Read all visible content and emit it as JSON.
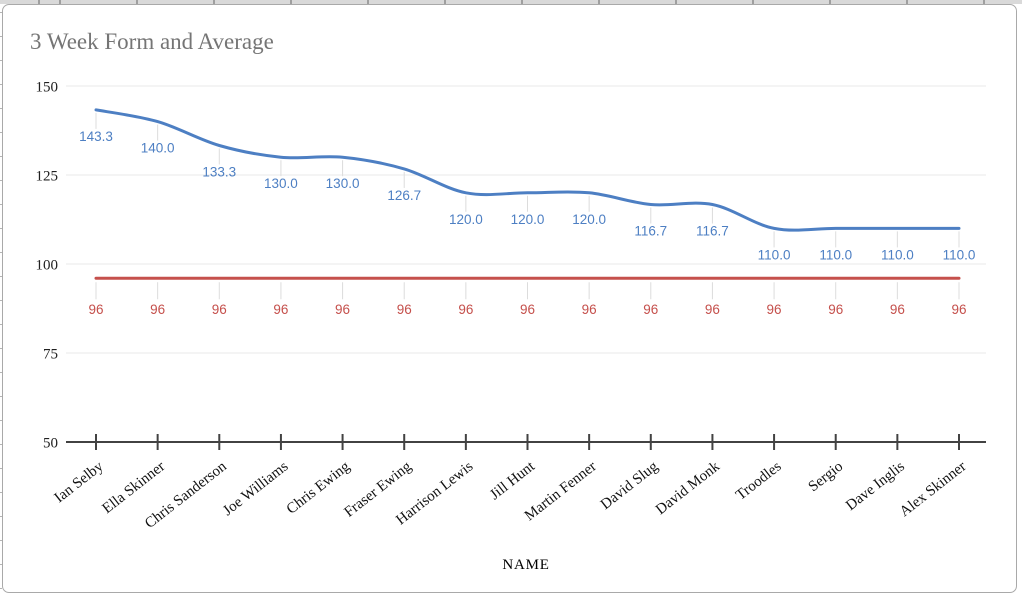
{
  "chart_data": {
    "type": "line",
    "title": "3 Week Form and Average",
    "xlabel": "NAME",
    "ylabel": "",
    "ylim": [
      50,
      150
    ],
    "yticks": [
      50,
      75,
      100,
      125,
      150
    ],
    "grid": true,
    "legend": "none",
    "smooth": true,
    "title_color": "#757575",
    "axis_color": "#424242",
    "gridline_color": "#e8e8e8",
    "leader_line_color": "#dcdcdc",
    "categories": [
      "Ian Selby",
      "Ella Skinner",
      "Chris Sanderson",
      "Joe Williams",
      "Chris Ewing",
      "Fraser Ewing",
      "Harrison Lewis",
      "Jill Hunt",
      "Martin Fenner",
      "David Slug",
      "David Monk",
      "Troodles",
      "Sergio",
      "Dave Inglis",
      "Alex Skinner"
    ],
    "series": [
      {
        "id": "form",
        "color": "#4d7fc3",
        "values": [
          143.3,
          140.0,
          133.3,
          130.0,
          130.0,
          126.7,
          120.0,
          120.0,
          120.0,
          116.7,
          116.7,
          110.0,
          110.0,
          110.0,
          110.0
        ],
        "point_labels": [
          "143.3",
          "140.0",
          "133.3",
          "130.0",
          "130.0",
          "126.7",
          "120.0",
          "120.0",
          "120.0",
          "116.7",
          "116.7",
          "110.0",
          "110.0",
          "110.0",
          "110.0"
        ]
      },
      {
        "id": "average",
        "color": "#c5504c",
        "values": [
          96,
          96,
          96,
          96,
          96,
          96,
          96,
          96,
          96,
          96,
          96,
          96,
          96,
          96,
          96
        ],
        "point_labels": [
          "96",
          "96",
          "96",
          "96",
          "96",
          "96",
          "96",
          "96",
          "96",
          "96",
          "96",
          "96",
          "96",
          "96",
          "96"
        ]
      }
    ]
  }
}
